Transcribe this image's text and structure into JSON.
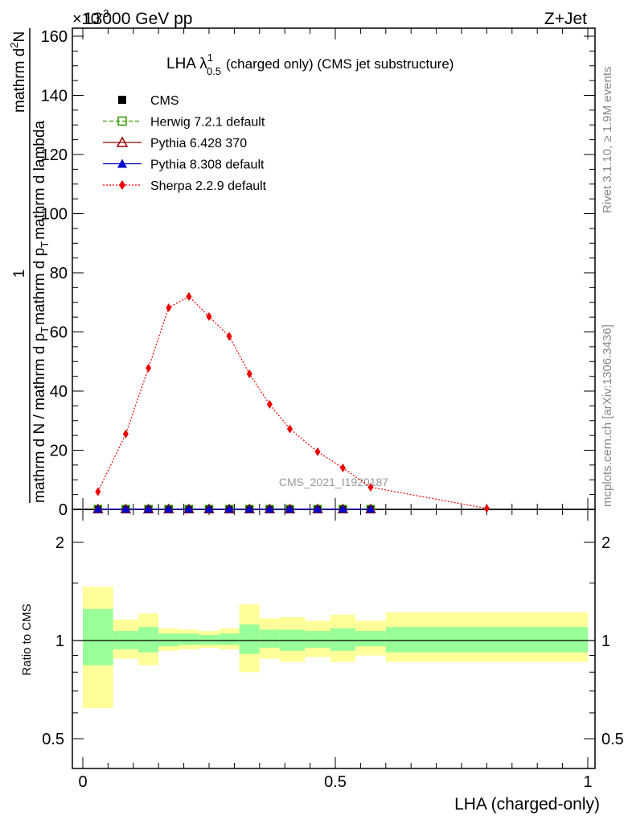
{
  "header": {
    "left": "13000 GeV pp",
    "right": "Z+Jet",
    "exponent": "×10",
    "exponent_power": "-3"
  },
  "side_labels": {
    "top": "Rivet 3.1.10, ≥ 1.9M events",
    "bottom": "mcplots.cern.ch [arXiv:1306.3436]"
  },
  "plot_title": {
    "main": "LHA λ",
    "sup": "1",
    "sub": "0.5",
    "rest": "(charged only) (CMS jet substructure)"
  },
  "watermark": "CMS_2021_I1920187",
  "ylabel_main": {
    "one": "1",
    "den": "mathrm d N / mathrm d p",
    "den_sub": "T",
    "den_rest": "mathrm d p",
    "den_rest_sub": "T",
    "den_rest2": "mathrm d lambda",
    "num": "mathrm d",
    "num_sup": "2",
    "num_rest": "N"
  },
  "ratio_ylabel": "Ratio to CMS",
  "xlabel": "LHA (charged-only)",
  "colors": {
    "cms": "#000000",
    "herwig": "#339900",
    "pythia6": "#990000",
    "pythia8": "#0000cc",
    "sherpa": "#ee0000",
    "band_inner": "#99ff99",
    "band_outer": "#ffff99"
  },
  "legend": [
    {
      "name": "CMS",
      "marker": "square-filled",
      "line": "none",
      "color": "#000000"
    },
    {
      "name": "Herwig 7.2.1 default",
      "marker": "square-open",
      "line": "dashed",
      "color": "#339900"
    },
    {
      "name": "Pythia 6.428 370",
      "marker": "triangle-open",
      "line": "solid",
      "color": "#990000"
    },
    {
      "name": "Pythia 8.308 default",
      "marker": "triangle-filled",
      "line": "solid",
      "color": "#0000cc"
    },
    {
      "name": "Sherpa 2.2.9 default",
      "marker": "diamond-filled",
      "line": "dotted",
      "color": "#ee0000"
    }
  ],
  "chart_data": [
    {
      "type": "line",
      "panel": "main",
      "xlim": [
        0,
        1
      ],
      "ylim": [
        0,
        162
      ],
      "y_scale_note": "×10^-3",
      "x_ticks": [
        0,
        0.5,
        1
      ],
      "y_ticks": [
        0,
        20,
        40,
        60,
        80,
        100,
        120,
        140,
        160
      ],
      "series": [
        {
          "name": "Sherpa 2.2.9 default",
          "x": [
            0.03,
            0.085,
            0.13,
            0.17,
            0.21,
            0.25,
            0.29,
            0.33,
            0.37,
            0.41,
            0.465,
            0.515,
            0.57,
            0.8
          ],
          "y": [
            6,
            25.5,
            47.8,
            68.2,
            72.0,
            65.2,
            58.5,
            45.8,
            35.5,
            27.2,
            19.5,
            14.0,
            7.5,
            0.3
          ]
        },
        {
          "name": "CMS",
          "x": [
            0.03,
            0.085,
            0.13,
            0.17,
            0.21,
            0.25,
            0.29,
            0.33,
            0.37,
            0.41,
            0.465,
            0.515,
            0.57
          ],
          "y": [
            0.1,
            0.1,
            0.1,
            0.1,
            0.1,
            0.1,
            0.1,
            0.1,
            0.1,
            0.1,
            0.1,
            0.1,
            0.1
          ]
        },
        {
          "name": "Herwig 7.2.1 default",
          "x": [
            0.03,
            0.085,
            0.13,
            0.17,
            0.21,
            0.25,
            0.29,
            0.33,
            0.37,
            0.41,
            0.465,
            0.515,
            0.57
          ],
          "y": [
            0.1,
            0.1,
            0.1,
            0.1,
            0.1,
            0.1,
            0.1,
            0.1,
            0.1,
            0.1,
            0.1,
            0.1,
            0.1
          ]
        },
        {
          "name": "Pythia 6.428 370",
          "x": [
            0.03,
            0.085,
            0.13,
            0.17,
            0.21,
            0.25,
            0.29,
            0.33,
            0.37,
            0.41,
            0.465,
            0.515,
            0.57
          ],
          "y": [
            0.1,
            0.1,
            0.1,
            0.1,
            0.1,
            0.1,
            0.1,
            0.1,
            0.1,
            0.1,
            0.1,
            0.1,
            0.1
          ]
        },
        {
          "name": "Pythia 8.308 default",
          "x": [
            0.03,
            0.085,
            0.13,
            0.17,
            0.21,
            0.25,
            0.29,
            0.33,
            0.37,
            0.41,
            0.465,
            0.515,
            0.57
          ],
          "y": [
            0.1,
            0.1,
            0.1,
            0.1,
            0.1,
            0.1,
            0.1,
            0.1,
            0.1,
            0.1,
            0.1,
            0.1,
            0.1
          ]
        }
      ]
    },
    {
      "type": "area",
      "panel": "ratio",
      "xlim": [
        0,
        1
      ],
      "ylim": [
        0.4,
        2.4
      ],
      "y_scale": "log",
      "y_ticks": [
        0.5,
        1,
        2
      ],
      "x_ticks": [
        0,
        0.5,
        1
      ],
      "reference_line": 1,
      "bins": [
        {
          "x_lo": 0.0,
          "x_hi": 0.06,
          "inner": [
            0.84,
            1.25
          ],
          "outer": [
            0.62,
            1.46
          ]
        },
        {
          "x_lo": 0.06,
          "x_hi": 0.11,
          "inner": [
            0.94,
            1.07
          ],
          "outer": [
            0.88,
            1.16
          ]
        },
        {
          "x_lo": 0.11,
          "x_hi": 0.15,
          "inner": [
            0.92,
            1.1
          ],
          "outer": [
            0.84,
            1.21
          ]
        },
        {
          "x_lo": 0.15,
          "x_hi": 0.19,
          "inner": [
            0.96,
            1.05
          ],
          "outer": [
            0.93,
            1.09
          ]
        },
        {
          "x_lo": 0.19,
          "x_hi": 0.23,
          "inner": [
            0.97,
            1.05
          ],
          "outer": [
            0.94,
            1.08
          ]
        },
        {
          "x_lo": 0.23,
          "x_hi": 0.27,
          "inner": [
            0.97,
            1.04
          ],
          "outer": [
            0.95,
            1.07
          ]
        },
        {
          "x_lo": 0.27,
          "x_hi": 0.31,
          "inner": [
            0.97,
            1.05
          ],
          "outer": [
            0.94,
            1.09
          ]
        },
        {
          "x_lo": 0.31,
          "x_hi": 0.35,
          "inner": [
            0.91,
            1.12
          ],
          "outer": [
            0.8,
            1.29
          ]
        },
        {
          "x_lo": 0.35,
          "x_hi": 0.39,
          "inner": [
            0.95,
            1.08
          ],
          "outer": [
            0.88,
            1.17
          ]
        },
        {
          "x_lo": 0.39,
          "x_hi": 0.44,
          "inner": [
            0.93,
            1.08
          ],
          "outer": [
            0.86,
            1.18
          ]
        },
        {
          "x_lo": 0.44,
          "x_hi": 0.49,
          "inner": [
            0.95,
            1.07
          ],
          "outer": [
            0.89,
            1.15
          ]
        },
        {
          "x_lo": 0.49,
          "x_hi": 0.54,
          "inner": [
            0.93,
            1.09
          ],
          "outer": [
            0.86,
            1.2
          ]
        },
        {
          "x_lo": 0.54,
          "x_hi": 0.6,
          "inner": [
            0.96,
            1.07
          ],
          "outer": [
            0.9,
            1.15
          ]
        },
        {
          "x_lo": 0.6,
          "x_hi": 1.0,
          "inner": [
            0.92,
            1.1
          ],
          "outer": [
            0.86,
            1.22
          ]
        }
      ]
    }
  ]
}
